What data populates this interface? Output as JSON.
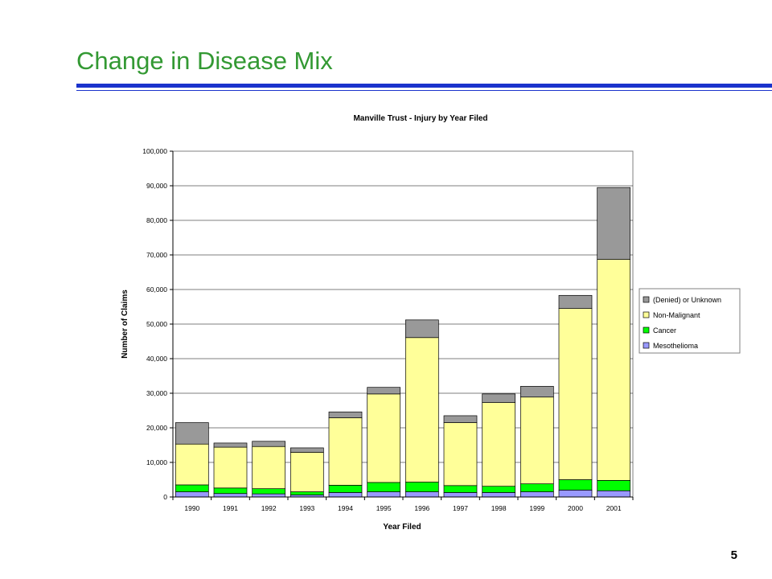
{
  "slide": {
    "title": "Change in Disease Mix",
    "page_number": "5"
  },
  "colors": {
    "title": "#339933",
    "rule": "#1a33cc",
    "mesothelioma": "#9999ff",
    "cancer": "#00ff00",
    "non_malignant": "#ffff99",
    "denied_unknown": "#999999"
  },
  "chart_data": {
    "type": "bar",
    "stacked": true,
    "title": "Manville Trust - Injury by Year Filed",
    "xlabel": "Year Filed",
    "ylabel": "Number of Claims",
    "ylim": [
      0,
      100000
    ],
    "yticks": [
      "0",
      "10,000",
      "20,000",
      "30,000",
      "40,000",
      "50,000",
      "60,000",
      "70,000",
      "80,000",
      "90,000",
      "100,000"
    ],
    "categories": [
      "1990",
      "1991",
      "1992",
      "1993",
      "1994",
      "1995",
      "1996",
      "1997",
      "1998",
      "1999",
      "2000",
      "2001"
    ],
    "legend_position": "right",
    "series": [
      {
        "name": "Mesothelioma",
        "color": "#9999ff",
        "values": [
          1500,
          1000,
          900,
          600,
          1300,
          1500,
          1500,
          1300,
          1300,
          1500,
          2000,
          1800
        ]
      },
      {
        "name": "Cancer",
        "color": "#00ff00",
        "values": [
          2000,
          1600,
          1500,
          900,
          2100,
          2700,
          2800,
          2000,
          1800,
          2300,
          3000,
          3000
        ]
      },
      {
        "name": "Non-Malignant",
        "color": "#ffff99",
        "values": [
          11800,
          11800,
          12200,
          11400,
          19500,
          25600,
          41800,
          18200,
          24200,
          25100,
          49500,
          63900
        ]
      },
      {
        "name": "(Denied) or Unknown",
        "color": "#999999",
        "values": [
          6200,
          1200,
          1500,
          1300,
          1700,
          1900,
          5100,
          2000,
          2500,
          3100,
          3800,
          20800
        ]
      }
    ]
  }
}
